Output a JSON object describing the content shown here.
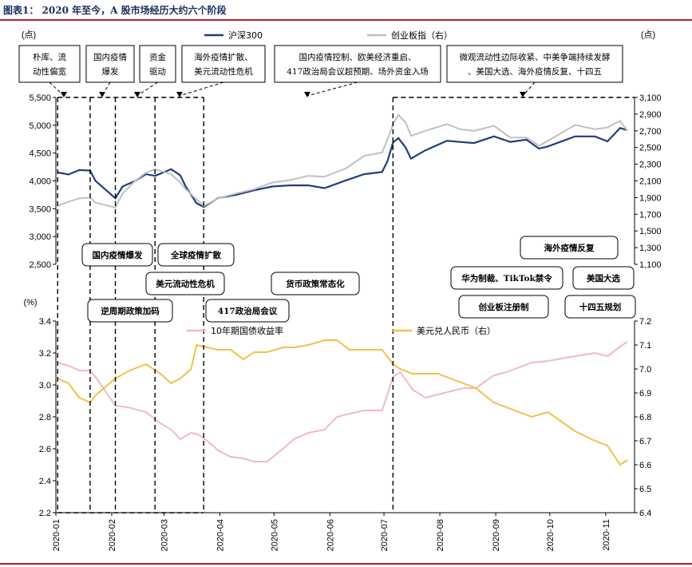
{
  "page": {
    "title": "图表1：  2020 年至今，A 股市场经历大约六个阶段",
    "accent_color": "#b0202a",
    "title_color": "#1a2b5c"
  },
  "annotations": [
    "朴库、流动性偏宽",
    "国内疫情爆发",
    "资金驱动",
    "海外疫情扩散、美元流动性危机",
    "国内疫情控制、欧美经济重启、417政治局会议超预期、场外资金入场",
    "微观流动性边际收紧、中美争端持续发酵、美国大选、海外疫情反复、十四五"
  ],
  "events": [
    "国内疫情爆发",
    "全球疫情扩散",
    "美元流动性危机",
    "逆周期政策加码",
    "417政治局会议",
    "货币政策常态化",
    "海外疫情反复",
    "华为制裁、TikTok禁令",
    "美国大选",
    "创业板注册制",
    "十四五规划"
  ],
  "chart_data": [
    {
      "type": "line",
      "y_unit_left": "(点)",
      "y_unit_right": "(点)",
      "ylim_left": [
        2500,
        5500
      ],
      "ylim_right": [
        1100,
        3100
      ],
      "yticks_left": [
        "2,500",
        "3,000",
        "3,500",
        "4,000",
        "4,500",
        "5,000",
        "5,500"
      ],
      "yticks_right": [
        "1,100",
        "1,300",
        "1,500",
        "1,700",
        "1,900",
        "2,100",
        "2,300",
        "2,500",
        "2,700",
        "2,900",
        "3,100"
      ],
      "legend_placement": "top-center",
      "series": [
        {
          "name": "沪深300",
          "axis": "left",
          "color": "#1f3f7a",
          "points": [
            [
              "2020-01-02",
              4152
            ],
            [
              "2020-01-08",
              4115
            ],
            [
              "2020-01-14",
              4195
            ],
            [
              "2020-01-20",
              4185
            ],
            [
              "2020-01-23",
              3999
            ],
            [
              "2020-02-03",
              3688
            ],
            [
              "2020-02-07",
              3900
            ],
            [
              "2020-02-14",
              4000
            ],
            [
              "2020-02-20",
              4120
            ],
            [
              "2020-02-25",
              4090
            ],
            [
              "2020-03-05",
              4210
            ],
            [
              "2020-03-10",
              4100
            ],
            [
              "2020-03-13",
              3900
            ],
            [
              "2020-03-19",
              3600
            ],
            [
              "2020-03-23",
              3530
            ],
            [
              "2020-03-31",
              3690
            ],
            [
              "2020-04-10",
              3750
            ],
            [
              "2020-04-20",
              3830
            ],
            [
              "2020-04-30",
              3900
            ],
            [
              "2020-05-10",
              3920
            ],
            [
              "2020-05-20",
              3920
            ],
            [
              "2020-05-29",
              3870
            ],
            [
              "2020-06-10",
              4010
            ],
            [
              "2020-06-20",
              4120
            ],
            [
              "2020-06-30",
              4160
            ],
            [
              "2020-07-03",
              4360
            ],
            [
              "2020-07-06",
              4690
            ],
            [
              "2020-07-09",
              4770
            ],
            [
              "2020-07-13",
              4600
            ],
            [
              "2020-07-16",
              4400
            ],
            [
              "2020-07-24",
              4550
            ],
            [
              "2020-08-05",
              4720
            ],
            [
              "2020-08-12",
              4700
            ],
            [
              "2020-08-20",
              4680
            ],
            [
              "2020-08-31",
              4800
            ],
            [
              "2020-09-09",
              4700
            ],
            [
              "2020-09-18",
              4740
            ],
            [
              "2020-09-25",
              4580
            ],
            [
              "2020-09-30",
              4620
            ],
            [
              "2020-10-15",
              4800
            ],
            [
              "2020-10-26",
              4800
            ],
            [
              "2020-11-02",
              4710
            ],
            [
              "2020-11-09",
              4950
            ],
            [
              "2020-11-13",
              4910
            ]
          ]
        },
        {
          "name": "创业板指（右）",
          "axis": "right",
          "color": "#c0c0c0",
          "points": [
            [
              "2020-01-02",
              1800
            ],
            [
              "2020-01-08",
              1850
            ],
            [
              "2020-01-14",
              1890
            ],
            [
              "2020-01-20",
              1900
            ],
            [
              "2020-01-23",
              1840
            ],
            [
              "2020-02-03",
              1780
            ],
            [
              "2020-02-07",
              1950
            ],
            [
              "2020-02-14",
              2100
            ],
            [
              "2020-02-20",
              2200
            ],
            [
              "2020-02-25",
              2240
            ],
            [
              "2020-03-05",
              2180
            ],
            [
              "2020-03-10",
              2080
            ],
            [
              "2020-03-13",
              2000
            ],
            [
              "2020-03-19",
              1880
            ],
            [
              "2020-03-23",
              1800
            ],
            [
              "2020-03-31",
              1890
            ],
            [
              "2020-04-10",
              1950
            ],
            [
              "2020-04-20",
              2000
            ],
            [
              "2020-04-30",
              2080
            ],
            [
              "2020-05-10",
              2110
            ],
            [
              "2020-05-20",
              2160
            ],
            [
              "2020-05-29",
              2150
            ],
            [
              "2020-06-10",
              2250
            ],
            [
              "2020-06-20",
              2400
            ],
            [
              "2020-06-30",
              2440
            ],
            [
              "2020-07-03",
              2600
            ],
            [
              "2020-07-06",
              2780
            ],
            [
              "2020-07-09",
              2890
            ],
            [
              "2020-07-13",
              2800
            ],
            [
              "2020-07-16",
              2640
            ],
            [
              "2020-07-24",
              2700
            ],
            [
              "2020-08-05",
              2780
            ],
            [
              "2020-08-12",
              2720
            ],
            [
              "2020-08-20",
              2700
            ],
            [
              "2020-08-31",
              2760
            ],
            [
              "2020-09-09",
              2620
            ],
            [
              "2020-09-18",
              2620
            ],
            [
              "2020-09-25",
              2520
            ],
            [
              "2020-09-30",
              2580
            ],
            [
              "2020-10-15",
              2770
            ],
            [
              "2020-10-26",
              2720
            ],
            [
              "2020-11-02",
              2740
            ],
            [
              "2020-11-09",
              2820
            ],
            [
              "2020-11-13",
              2700
            ]
          ]
        }
      ]
    },
    {
      "type": "line",
      "y_unit_left": "(%)",
      "ylim_left": [
        2.2,
        3.4
      ],
      "ylim_right": [
        6.4,
        7.2
      ],
      "yticks_left": [
        "2.2",
        "2.4",
        "2.6",
        "2.8",
        "3.0",
        "3.2",
        "3.4"
      ],
      "yticks_right": [
        "6.4",
        "6.5",
        "6.6",
        "6.7",
        "6.8",
        "6.9",
        "7.0",
        "7.1",
        "7.2"
      ],
      "xticks": [
        "2020-01",
        "2020-02",
        "2020-03",
        "2020-04",
        "2020-05",
        "2020-06",
        "2020-07",
        "2020-08",
        "2020-09",
        "2020-10",
        "2020-11"
      ],
      "legend_placement": "top",
      "series": [
        {
          "name": "10年期国债收益率",
          "axis": "left",
          "color": "#f2b8c6",
          "points": [
            [
              "2020-01-02",
              3.14
            ],
            [
              "2020-01-08",
              3.12
            ],
            [
              "2020-01-14",
              3.09
            ],
            [
              "2020-01-20",
              3.09
            ],
            [
              "2020-01-23",
              3.05
            ],
            [
              "2020-02-03",
              2.87
            ],
            [
              "2020-02-10",
              2.86
            ],
            [
              "2020-02-20",
              2.83
            ],
            [
              "2020-02-28",
              2.76
            ],
            [
              "2020-03-05",
              2.72
            ],
            [
              "2020-03-10",
              2.66
            ],
            [
              "2020-03-16",
              2.7
            ],
            [
              "2020-03-20",
              2.69
            ],
            [
              "2020-03-25",
              2.65
            ],
            [
              "2020-03-31",
              2.59
            ],
            [
              "2020-04-07",
              2.55
            ],
            [
              "2020-04-14",
              2.54
            ],
            [
              "2020-04-20",
              2.52
            ],
            [
              "2020-04-27",
              2.52
            ],
            [
              "2020-05-06",
              2.6
            ],
            [
              "2020-05-12",
              2.66
            ],
            [
              "2020-05-20",
              2.7
            ],
            [
              "2020-05-29",
              2.72
            ],
            [
              "2020-06-05",
              2.8
            ],
            [
              "2020-06-12",
              2.82
            ],
            [
              "2020-06-20",
              2.84
            ],
            [
              "2020-06-30",
              2.84
            ],
            [
              "2020-07-06",
              3.05
            ],
            [
              "2020-07-10",
              3.08
            ],
            [
              "2020-07-17",
              2.97
            ],
            [
              "2020-07-24",
              2.92
            ],
            [
              "2020-07-31",
              2.94
            ],
            [
              "2020-08-07",
              2.96
            ],
            [
              "2020-08-14",
              2.98
            ],
            [
              "2020-08-21",
              2.98
            ],
            [
              "2020-08-31",
              3.06
            ],
            [
              "2020-09-07",
              3.08
            ],
            [
              "2020-09-14",
              3.11
            ],
            [
              "2020-09-21",
              3.14
            ],
            [
              "2020-09-30",
              3.15
            ],
            [
              "2020-10-15",
              3.18
            ],
            [
              "2020-10-26",
              3.2
            ],
            [
              "2020-11-02",
              3.18
            ],
            [
              "2020-11-09",
              3.24
            ],
            [
              "2020-11-13",
              3.27
            ]
          ]
        },
        {
          "name": "美元兑人民币（右）",
          "axis": "right",
          "color": "#f2c04a",
          "points": [
            [
              "2020-01-02",
              6.96
            ],
            [
              "2020-01-08",
              6.94
            ],
            [
              "2020-01-14",
              6.88
            ],
            [
              "2020-01-20",
              6.86
            ],
            [
              "2020-01-23",
              6.89
            ],
            [
              "2020-02-03",
              6.96
            ],
            [
              "2020-02-10",
              6.99
            ],
            [
              "2020-02-20",
              7.02
            ],
            [
              "2020-02-28",
              6.98
            ],
            [
              "2020-03-05",
              6.94
            ],
            [
              "2020-03-10",
              6.96
            ],
            [
              "2020-03-16",
              7.0
            ],
            [
              "2020-03-19",
              7.1
            ],
            [
              "2020-03-25",
              7.09
            ],
            [
              "2020-03-31",
              7.08
            ],
            [
              "2020-04-07",
              7.08
            ],
            [
              "2020-04-14",
              7.04
            ],
            [
              "2020-04-20",
              7.07
            ],
            [
              "2020-04-27",
              7.07
            ],
            [
              "2020-05-06",
              7.09
            ],
            [
              "2020-05-12",
              7.09
            ],
            [
              "2020-05-20",
              7.1
            ],
            [
              "2020-05-29",
              7.12
            ],
            [
              "2020-06-05",
              7.12
            ],
            [
              "2020-06-12",
              7.08
            ],
            [
              "2020-06-20",
              7.08
            ],
            [
              "2020-06-30",
              7.08
            ],
            [
              "2020-07-06",
              7.02
            ],
            [
              "2020-07-10",
              7.0
            ],
            [
              "2020-07-17",
              6.98
            ],
            [
              "2020-07-24",
              6.98
            ],
            [
              "2020-07-31",
              6.98
            ],
            [
              "2020-08-07",
              6.96
            ],
            [
              "2020-08-14",
              6.94
            ],
            [
              "2020-08-21",
              6.92
            ],
            [
              "2020-08-31",
              6.86
            ],
            [
              "2020-09-07",
              6.84
            ],
            [
              "2020-09-14",
              6.82
            ],
            [
              "2020-09-21",
              6.8
            ],
            [
              "2020-09-30",
              6.82
            ],
            [
              "2020-10-15",
              6.74
            ],
            [
              "2020-10-26",
              6.7
            ],
            [
              "2020-11-02",
              6.68
            ],
            [
              "2020-11-09",
              6.6
            ],
            [
              "2020-11-13",
              6.62
            ]
          ]
        }
      ]
    }
  ]
}
